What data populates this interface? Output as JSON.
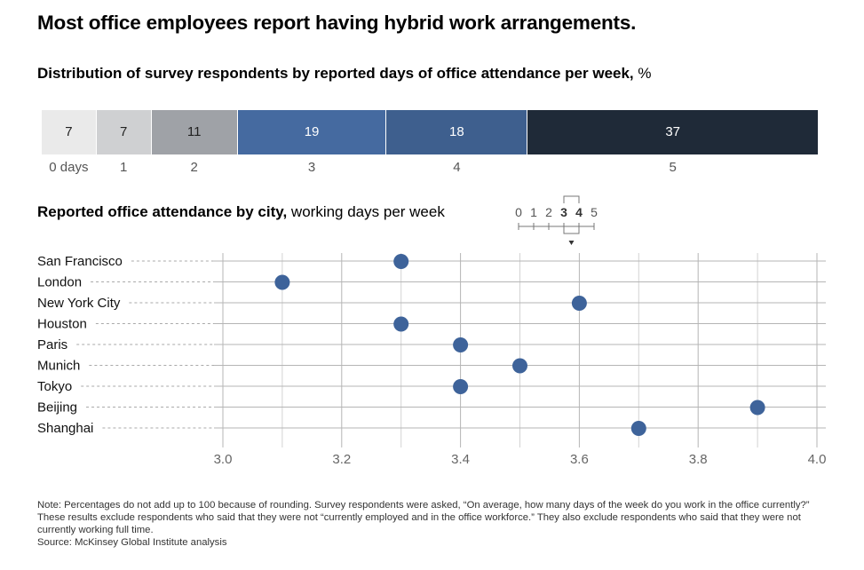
{
  "title": "Most office employees report having hybrid work arrangements.",
  "distribution": {
    "subtitle_bold": "Distribution of survey respondents by reported days of office attendance per week,",
    "subtitle_unit": " %"
  },
  "city_chart": {
    "subtitle_bold": "Reported office attendance by city,",
    "subtitle_unit": " working days per week"
  },
  "legend_scale": {
    "labels": [
      "0",
      "1",
      "2",
      "3",
      "4",
      "5"
    ],
    "highlight": [
      "3",
      "4"
    ]
  },
  "chart_data": [
    {
      "type": "bar",
      "orientation": "horizontal-stacked",
      "categories": [
        "0 days",
        "1",
        "2",
        "3",
        "4",
        "5"
      ],
      "values": [
        7,
        7,
        11,
        19,
        18,
        37
      ],
      "colors": [
        "#eaeaea",
        "#cfd0d2",
        "#9fa2a7",
        "#456aa0",
        "#3e5f8e",
        "#1f2a38"
      ],
      "label_colors": [
        "#222222",
        "#222222",
        "#222222",
        "#ffffff",
        "#ffffff",
        "#ffffff"
      ]
    },
    {
      "type": "scatter",
      "categories": [
        "San Francisco",
        "London",
        "New York City",
        "Houston",
        "Paris",
        "Munich",
        "Tokyo",
        "Beijing",
        "Shanghai"
      ],
      "values": [
        3.3,
        3.1,
        3.6,
        3.3,
        3.4,
        3.5,
        3.4,
        3.9,
        3.7
      ],
      "xlim": [
        3.0,
        4.0
      ],
      "xticks": [
        "3.0",
        "3.2",
        "3.4",
        "3.6",
        "3.8",
        "4.0"
      ],
      "grid": true,
      "marker_color": "#3e639a"
    }
  ],
  "note": "Note: Percentages do not add up to 100 because of rounding. Survey respondents were asked, “On average, how many days of the week do you work in the office currently?” These results exclude respondents who said that they were not “currently employed and in the office workforce.” They also exclude respondents who said that they were not currently working full time.",
  "source": "Source: McKinsey Global Institute analysis"
}
